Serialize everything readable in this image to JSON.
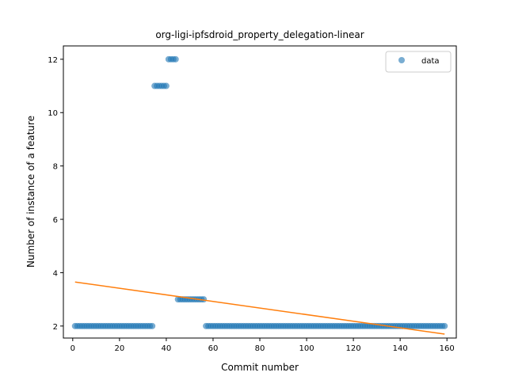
{
  "chart_data": {
    "type": "scatter",
    "title": "org-ligi-ipfsdroid_property_delegation-linear",
    "xlabel": "Commit number",
    "ylabel": "Number of instance of a feature",
    "xlim": [
      -4,
      164
    ],
    "ylim": [
      1.55,
      12.5
    ],
    "xticks": [
      0,
      20,
      40,
      60,
      80,
      100,
      120,
      140,
      160
    ],
    "yticks": [
      2,
      4,
      6,
      8,
      10,
      12
    ],
    "legend": {
      "position": "top-right",
      "entries": [
        "data"
      ]
    },
    "grid": false,
    "series": [
      {
        "name": "data",
        "kind": "scatter",
        "color": "#1f77b4",
        "segments": [
          {
            "x_start": 1,
            "x_end": 34,
            "y": 2
          },
          {
            "x_start": 35,
            "x_end": 40,
            "y": 11
          },
          {
            "x_start": 41,
            "x_end": 44,
            "y": 12
          },
          {
            "x_start": 45,
            "x_end": 56,
            "y": 3
          },
          {
            "x_start": 57,
            "x_end": 159,
            "y": 2
          }
        ]
      },
      {
        "kind": "line",
        "color": "#ff7f0e",
        "points": [
          [
            1,
            3.65
          ],
          [
            159,
            1.7
          ]
        ]
      }
    ]
  }
}
